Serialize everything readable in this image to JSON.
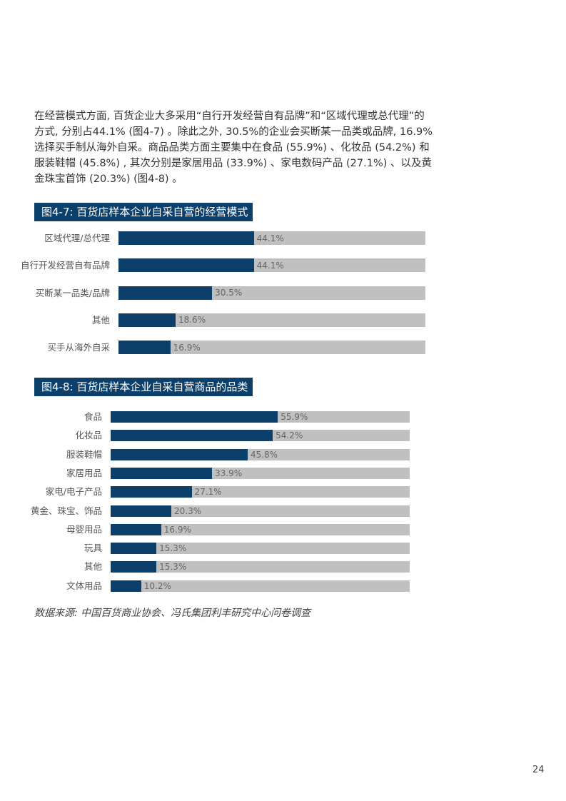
{
  "paragraph": "在经营模式方面, 百货企业大多采用“自行开发经营自有品牌”和“区域代理或总代理”的方式, 分别占44.1% (图4-7) 。除此之外, 30.5%的企业会买断某一品类或品牌, 16.9%选择买手制从海外自采。商品品类方面主要集中在食品 (55.9%) 、化妆品 (54.2%) 和服装鞋帽 (45.8%) , 其次分别是家居用品 (33.9%) 、家电数码产品 (27.1%) 、以及黄金珠宝首饰 (20.3%) (图4-8) 。",
  "colors": {
    "bar": "#0d3f6b",
    "track": "#c0c0c0",
    "header_bg": "#0d3f6b"
  },
  "chart_data": [
    {
      "type": "bar",
      "orientation": "horizontal",
      "title": "图4-7: 百货店样本企业自采自营的经营模式",
      "categories": [
        "区域代理/总代理",
        "自行开发经营自有品牌",
        "买断某一品类/品牌",
        "其他",
        "买手从海外自采"
      ],
      "values": [
        44.1,
        44.1,
        30.5,
        18.6,
        16.9
      ],
      "value_labels": [
        "44.1%",
        "44.1%",
        "30.5%",
        "18.6%",
        "16.9%"
      ],
      "xlim": [
        0,
        100
      ],
      "grid": false
    },
    {
      "type": "bar",
      "orientation": "horizontal",
      "title": "图4-8: 百货店样本企业自采自营商品的品类",
      "categories": [
        "食品",
        "化妆品",
        "服装鞋帽",
        "家居用品",
        "家电/电子产品",
        "黄金、珠宝、饰品",
        "母婴用品",
        "玩具",
        "其他",
        "文体用品"
      ],
      "values": [
        55.9,
        54.2,
        45.8,
        33.9,
        27.1,
        20.3,
        16.9,
        15.3,
        15.3,
        10.2
      ],
      "value_labels": [
        "55.9%",
        "54.2%",
        "45.8%",
        "33.9%",
        "27.1%",
        "20.3%",
        "16.9%",
        "15.3%",
        "15.3%",
        "10.2%"
      ],
      "xlim": [
        0,
        100
      ],
      "grid": false
    }
  ],
  "source": "数据来源: 中国百货商业协会、冯氏集团利丰研究中心问卷调查",
  "page_number": "24"
}
